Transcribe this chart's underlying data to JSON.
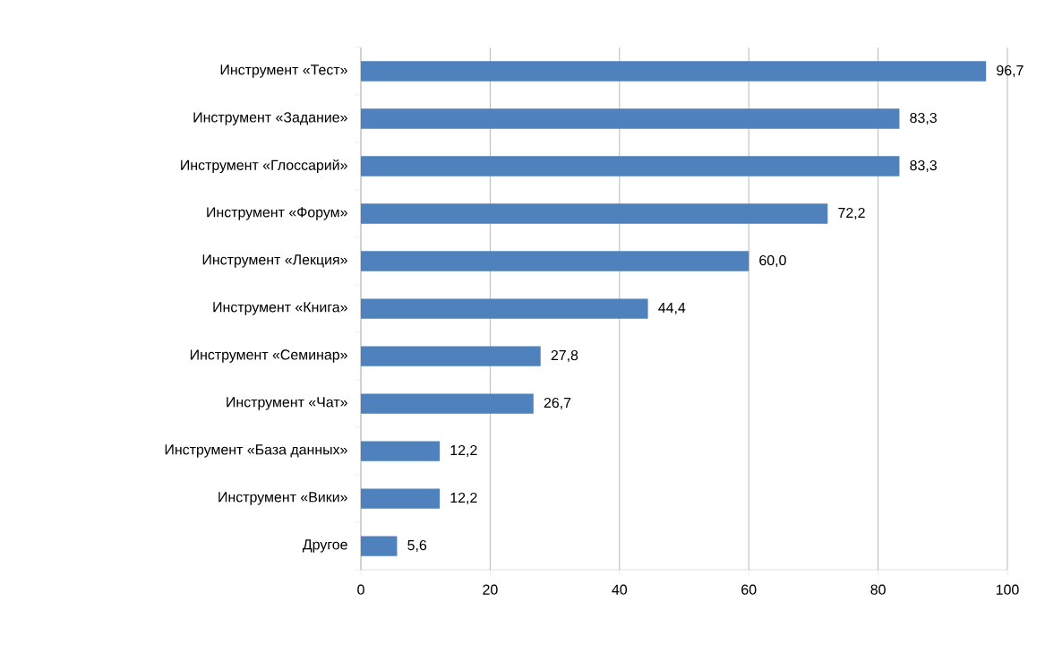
{
  "chart_data": {
    "type": "bar",
    "orientation": "horizontal",
    "categories": [
      "Инструмент «Тест»",
      "Инструмент «Задание»",
      "Инструмент «Глоссарий»",
      "Инструмент «Форум»",
      "Инструмент «Лекция»",
      "Инструмент «Книга»",
      "Инструмент «Семинар»",
      "Инструмент «Чат»",
      "Инструмент «База данных»",
      "Инструмент «Вики»",
      "Другое"
    ],
    "values": [
      96.7,
      83.3,
      83.3,
      72.2,
      60.0,
      44.4,
      27.8,
      26.7,
      12.2,
      12.2,
      5.6
    ],
    "value_labels": [
      "96,7",
      "83,3",
      "83,3",
      "72,2",
      "60,0",
      "44,4",
      "27,8",
      "26,7",
      "12,2",
      "12,2",
      "5,6"
    ],
    "color": "#4f81bd",
    "xlim": [
      0,
      100
    ],
    "xticks": [
      0,
      20,
      40,
      60,
      80,
      100
    ],
    "grid": "x"
  }
}
